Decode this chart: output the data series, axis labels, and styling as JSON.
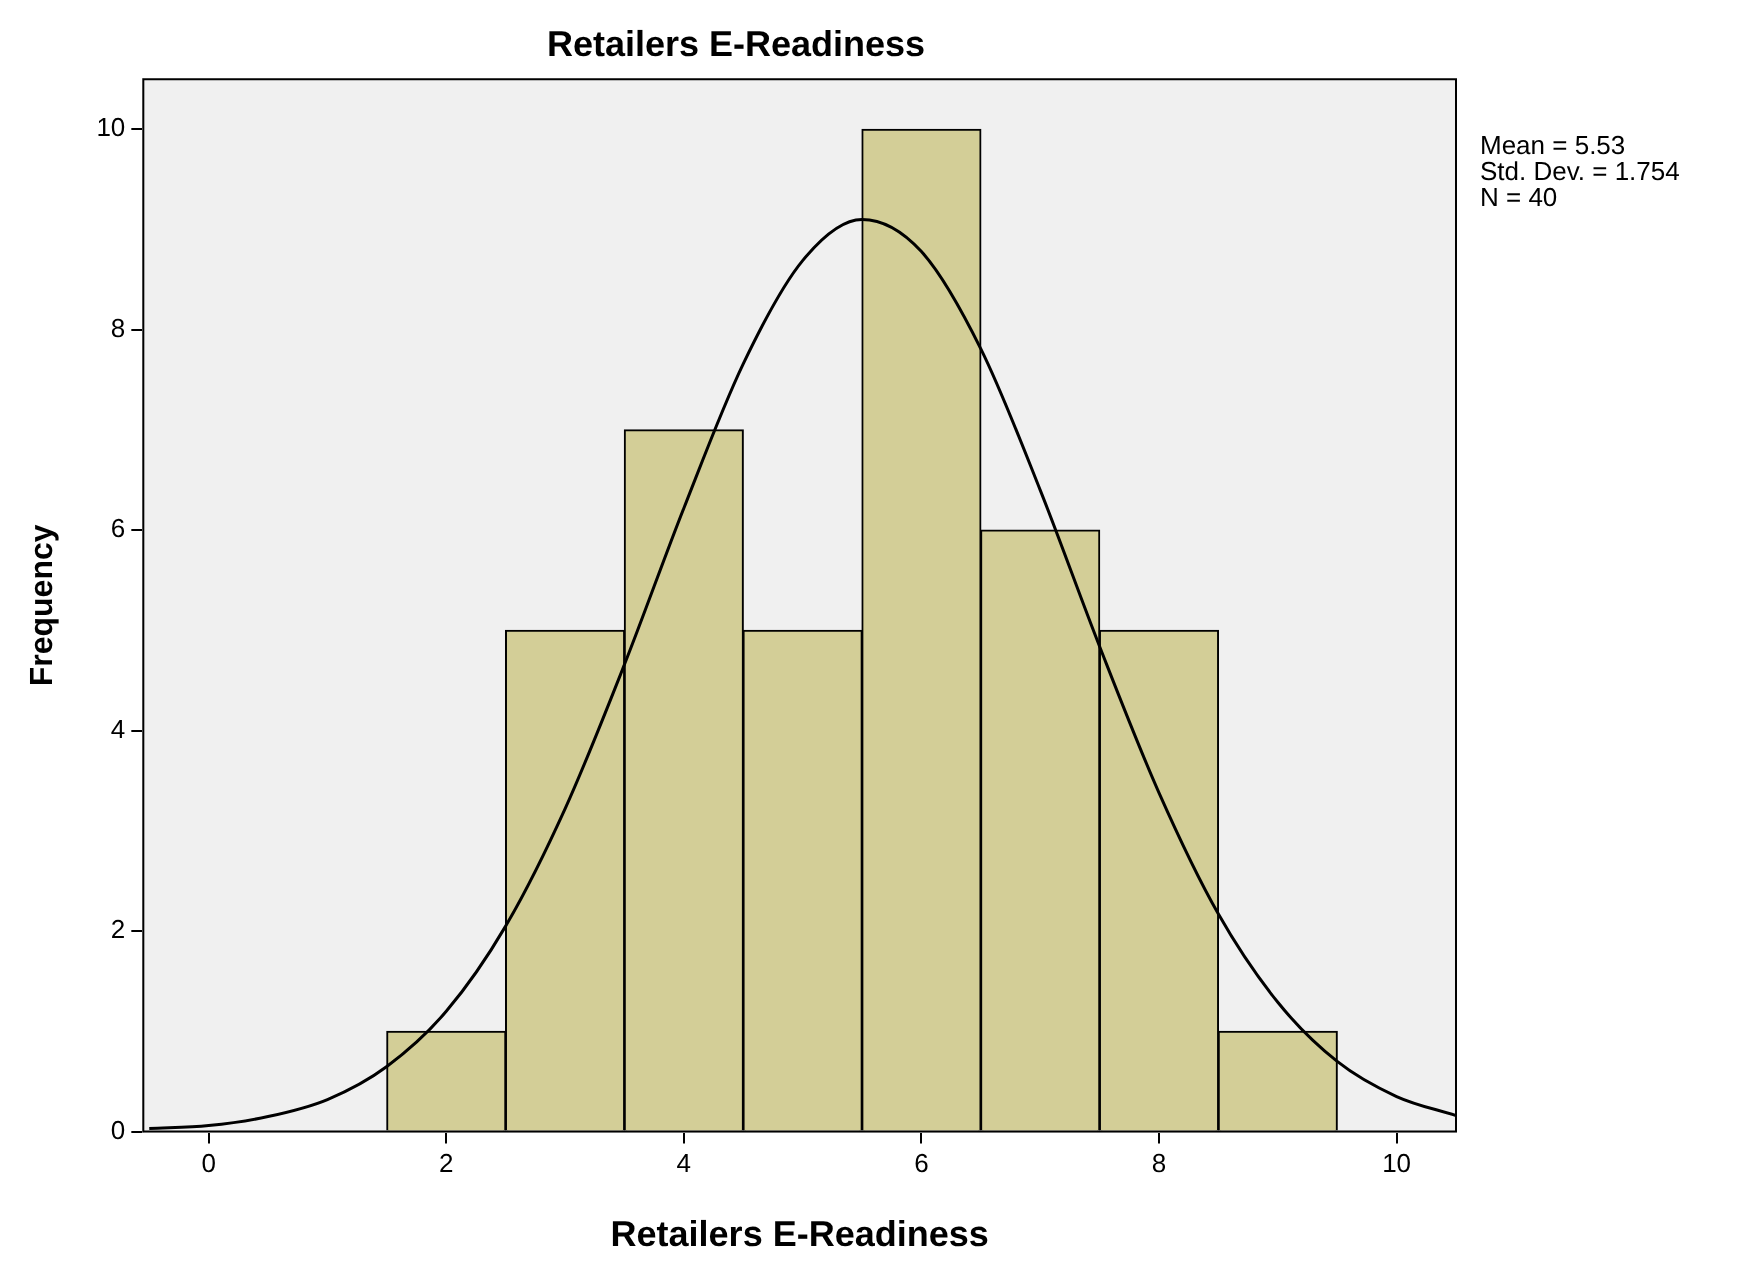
{
  "chart_data": {
    "type": "histogram",
    "title": "Retailers E-Readiness",
    "xlabel": "Retailers E-Readiness",
    "ylabel": "Frequency",
    "bins": [
      1.5,
      2.5,
      3.5,
      4.5,
      5.5,
      6.5,
      7.5,
      8.5,
      9.5
    ],
    "values": [
      1,
      5,
      7,
      5,
      10,
      6,
      5,
      1
    ],
    "color": "#d3ce97",
    "series": [
      {
        "type": "line",
        "color": "#000000",
        "x": [
          -0.5,
          0,
          0.5,
          1,
          1.5,
          2,
          2.5,
          3,
          3.5,
          4,
          4.5,
          5,
          5.5,
          6,
          6.5,
          7,
          7.5,
          8,
          8.5,
          9,
          9.5,
          10,
          10.5
        ],
        "values": [
          0.03,
          0.06,
          0.15,
          0.32,
          0.65,
          1.2,
          2.05,
          3.22,
          4.66,
          6.22,
          7.66,
          8.69,
          9.1,
          8.78,
          7.81,
          6.4,
          4.84,
          3.38,
          2.17,
          1.29,
          0.7,
          0.35,
          0.16
        ]
      }
    ],
    "xlim": [
      -0.55,
      10.5
    ],
    "xticks": [
      0,
      2,
      4,
      6,
      8,
      10
    ],
    "ylim": [
      0,
      10.5
    ],
    "yticks": [
      0,
      2,
      4,
      6,
      8,
      10
    ],
    "grid": false,
    "legend": false,
    "annotations": [
      "Mean = 5.53",
      "Std. Dev. = 1.754",
      "N = 40"
    ]
  }
}
